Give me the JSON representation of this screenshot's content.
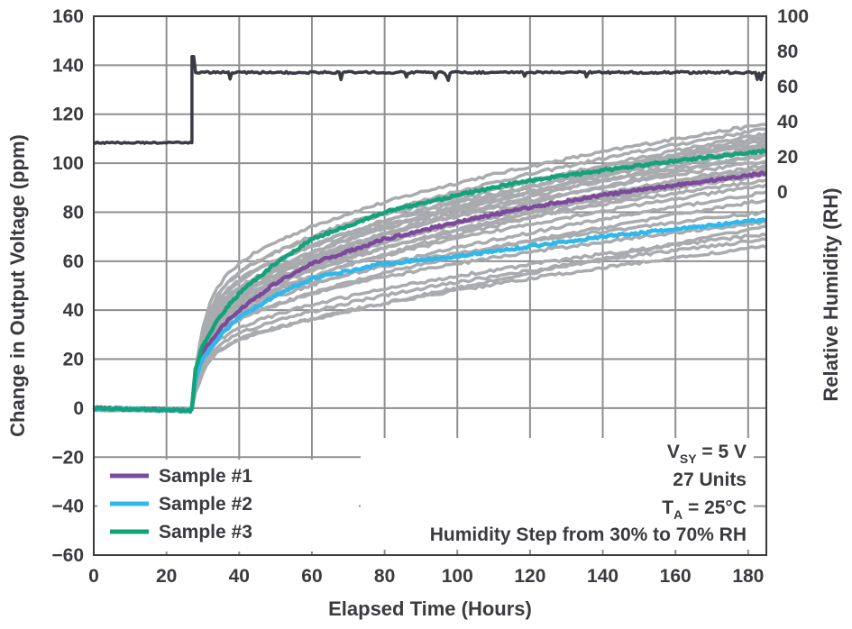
{
  "chart_data": {
    "type": "line",
    "xlabel": "Elapsed Time (Hours)",
    "ylabel": "Change in Output Voltage (ppm)",
    "y2label": "Relative Humidity (RH)",
    "xlim": [
      0,
      185
    ],
    "ylim": [
      -60,
      160
    ],
    "x_ticks": [
      "0",
      "20",
      "40",
      "60",
      "80",
      "100",
      "120",
      "140",
      "160",
      "180"
    ],
    "y_ticks": [
      "160",
      "140",
      "120",
      "100",
      "80",
      "60",
      "40",
      "20",
      "0",
      "−20",
      "−40",
      "−60"
    ],
    "y2_ticks": [
      "100",
      "80",
      "60",
      "40",
      "20",
      "0"
    ],
    "grid": true,
    "legend_position": "bottom-left",
    "humidity_series": {
      "name": "Relative Humidity",
      "color": "#3a3b45",
      "step_time": 27,
      "before_rh": 28,
      "after_rh": 68,
      "spike_rh": 77
    },
    "series": [
      {
        "name": "Sample #1",
        "color": "#7b4a9a",
        "x": [
          0,
          26.5,
          27,
          28,
          30,
          35,
          40,
          50,
          60,
          80,
          100,
          120,
          140,
          160,
          185
        ],
        "values": [
          0,
          -1,
          0,
          14,
          23,
          33,
          40,
          51,
          59,
          69,
          76,
          82,
          87,
          91,
          96
        ]
      },
      {
        "name": "Sample #2",
        "color": "#2eb8ec",
        "x": [
          0,
          26.5,
          27,
          28,
          30,
          35,
          40,
          50,
          60,
          80,
          100,
          120,
          140,
          160,
          185
        ],
        "values": [
          0,
          -1,
          0,
          12,
          20,
          30,
          37,
          46,
          53,
          59,
          62,
          66,
          70,
          73,
          77
        ]
      },
      {
        "name": "Sample #3",
        "color": "#12a37a",
        "x": [
          0,
          26.5,
          27,
          28,
          30,
          35,
          40,
          50,
          60,
          80,
          100,
          120,
          140,
          160,
          185
        ],
        "values": [
          0,
          -1,
          0,
          16,
          26,
          38,
          47,
          59,
          69,
          80,
          87,
          93,
          97,
          101,
          105
        ]
      }
    ],
    "other_units_color": "#a9abae",
    "other_units_final_values": [
      116,
      114,
      112,
      111,
      110,
      109,
      108,
      107,
      106,
      104,
      103,
      101,
      99,
      98,
      97,
      95,
      93,
      91,
      88,
      85,
      80,
      76,
      71,
      69,
      66
    ],
    "annotations": {
      "vsy_main": "V",
      "vsy_sub": "SY",
      "vsy_rest": " = 5 V",
      "units": "27 Units",
      "ta_main": "T",
      "ta_sub": "A",
      "ta_rest": " = 25°C",
      "step": "Humidity Step from 30% to 70% RH"
    }
  }
}
